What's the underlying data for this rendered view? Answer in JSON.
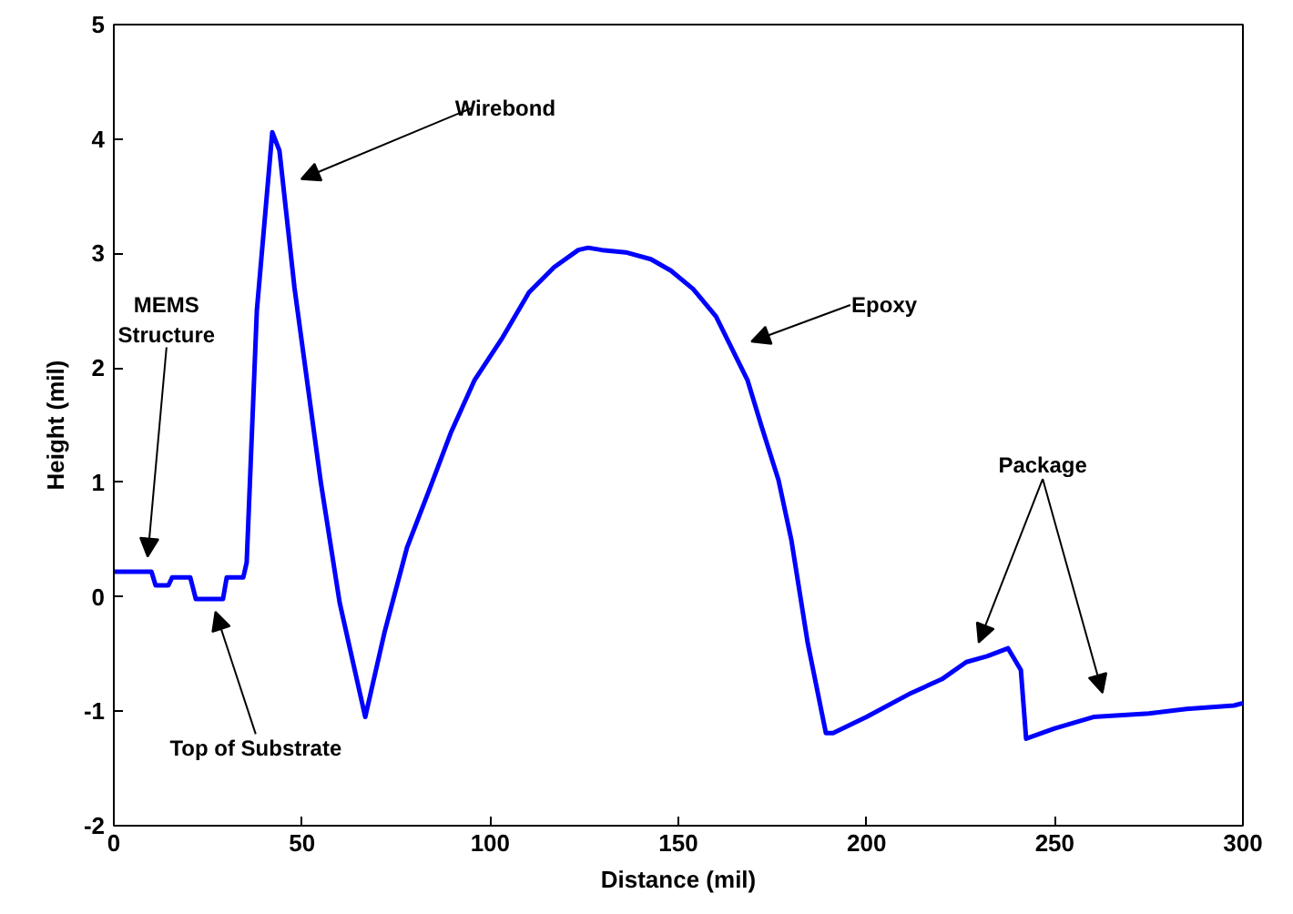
{
  "chart_data": {
    "type": "line",
    "xlabel": "Distance (mil)",
    "ylabel": "Height (mil)",
    "xlim": [
      0,
      300
    ],
    "xticks": [
      0,
      50,
      100,
      150,
      200,
      250,
      300
    ],
    "ylim": [
      -2,
      5
    ],
    "yticks": [
      -2,
      -1,
      0,
      1,
      2,
      3,
      4,
      5
    ],
    "grid": false,
    "series": [
      {
        "color": "#0000ff",
        "x": [
          0,
          10,
          11.1,
          14.5,
          15.5,
          20.3,
          21.8,
          29,
          30,
          34.4,
          35.3,
          38,
          42.1,
          44,
          48,
          55,
          60,
          66.8,
          72,
          77.9,
          84,
          89.5,
          95.8,
          103,
          110.3,
          117,
          123.4,
          126,
          129.7,
          136,
          142.7,
          148,
          153.9,
          160,
          168.4,
          172,
          176.6,
          180,
          184.4,
          189.2,
          191.1,
          200,
          211.9,
          220,
          226.5,
          232,
          237.6,
          241,
          242.4,
          250,
          260.3,
          275,
          285,
          297.6,
          300
        ],
        "values": [
          0.22,
          0.22,
          0.1,
          0.1,
          0.17,
          0.17,
          -0.02,
          -0.02,
          0.17,
          0.17,
          0.3,
          2.5,
          4.06,
          3.9,
          2.7,
          1.0,
          -0.05,
          -1.05,
          -0.3,
          0.43,
          0.95,
          1.43,
          1.89,
          2.25,
          2.66,
          2.88,
          3.03,
          3.05,
          3.03,
          3.01,
          2.95,
          2.85,
          2.69,
          2.45,
          1.89,
          1.5,
          1.02,
          0.5,
          -0.41,
          -1.19,
          -1.19,
          -1.05,
          -0.84,
          -0.72,
          -0.57,
          -0.52,
          -0.45,
          -0.64,
          -1.24,
          -1.15,
          -1.05,
          -1.02,
          -0.98,
          -0.95,
          -0.93
        ]
      }
    ],
    "annotations": [
      "MEMS\nStructure",
      "Top of Substrate",
      "Wirebond",
      "Epoxy",
      "Package"
    ]
  }
}
